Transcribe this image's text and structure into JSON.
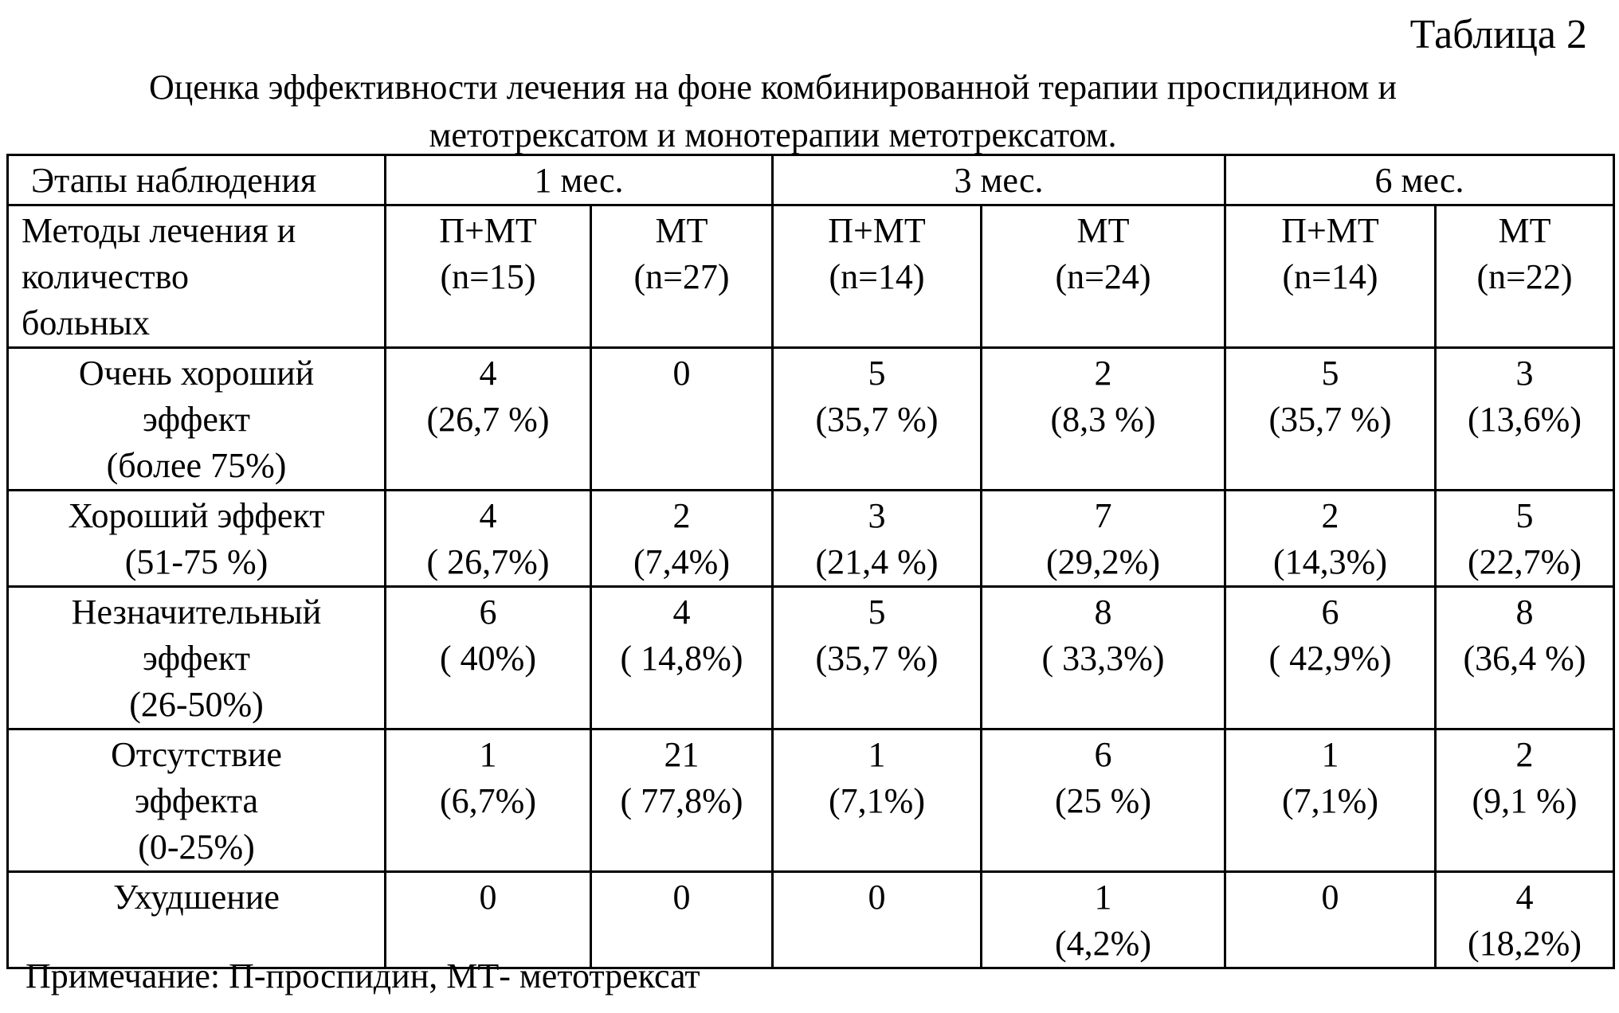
{
  "table_label": "Таблица 2",
  "title": {
    "line1": "Оценка эффективности   лечения  на фоне  комбинированной терапии проспидином и",
    "line2": "метотрексатом  и  монотерапии    метотрексатом."
  },
  "header": {
    "stages_label": "Этапы наблюдения",
    "periods": [
      "1 мес.",
      "3 мес.",
      "6 мес."
    ],
    "methods_label": [
      "Методы   лечения и",
      "количество",
      "больных"
    ],
    "groups": [
      {
        "name": "П+МТ",
        "n": "(n=15)"
      },
      {
        "name": "МТ",
        "n": "(n=27)"
      },
      {
        "name": "П+МТ",
        "n": "(n=14)"
      },
      {
        "name": "МТ",
        "n": "(n=24)"
      },
      {
        "name": "П+МТ",
        "n": "(n=14)"
      },
      {
        "name": "МТ",
        "n": "(n=22)"
      }
    ]
  },
  "rows": [
    {
      "label": [
        "Очень хороший",
        "эффект",
        "(более 75%)"
      ],
      "cells": [
        {
          "count": "4",
          "pct": "(26,7 %)"
        },
        {
          "count": "0",
          "pct": ""
        },
        {
          "count": "5",
          "pct": "(35,7 %)"
        },
        {
          "count": "2",
          "pct": "(8,3 %)"
        },
        {
          "count": "5",
          "pct": "(35,7 %)"
        },
        {
          "count": "3",
          "pct": "(13,6%)"
        }
      ]
    },
    {
      "label": [
        "Хороший эффект",
        "(51-75 %)"
      ],
      "cells": [
        {
          "count": "4",
          "pct": "( 26,7%)"
        },
        {
          "count": "2",
          "pct": "(7,4%)"
        },
        {
          "count": "3",
          "pct": "(21,4 %)"
        },
        {
          "count": "7",
          "pct": "(29,2%)"
        },
        {
          "count": "2",
          "pct": "(14,3%)"
        },
        {
          "count": "5",
          "pct": "(22,7%)"
        }
      ]
    },
    {
      "label": [
        "Незначительный",
        "эффект",
        "(26-50%)"
      ],
      "cells": [
        {
          "count": "6",
          "pct": "( 40%)"
        },
        {
          "count": "4",
          "pct": "( 14,8%)"
        },
        {
          "count": "5",
          "pct": "(35,7 %)"
        },
        {
          "count": "8",
          "pct": "( 33,3%)"
        },
        {
          "count": "6",
          "pct": "( 42,9%)"
        },
        {
          "count": "8",
          "pct": "(36,4 %)"
        }
      ]
    },
    {
      "label": [
        "Отсутствие",
        "эффекта",
        "(0-25%)"
      ],
      "cells": [
        {
          "count": "1",
          "pct": "(6,7%)"
        },
        {
          "count": "21",
          "pct": "( 77,8%)"
        },
        {
          "count": "1",
          "pct": "(7,1%)"
        },
        {
          "count": "6",
          "pct": "(25 %)"
        },
        {
          "count": "1",
          "pct": "(7,1%)"
        },
        {
          "count": "2",
          "pct": "(9,1 %)"
        }
      ]
    },
    {
      "label": [
        "Ухудшение"
      ],
      "cells": [
        {
          "count": "0",
          "pct": ""
        },
        {
          "count": "0",
          "pct": ""
        },
        {
          "count": "0",
          "pct": ""
        },
        {
          "count": "1",
          "pct": "(4,2%)"
        },
        {
          "count": "0",
          "pct": ""
        },
        {
          "count": "4",
          "pct": "(18,2%)"
        }
      ]
    }
  ],
  "note": "Примечание: П-проспидин,  МТ- метотрексат"
}
